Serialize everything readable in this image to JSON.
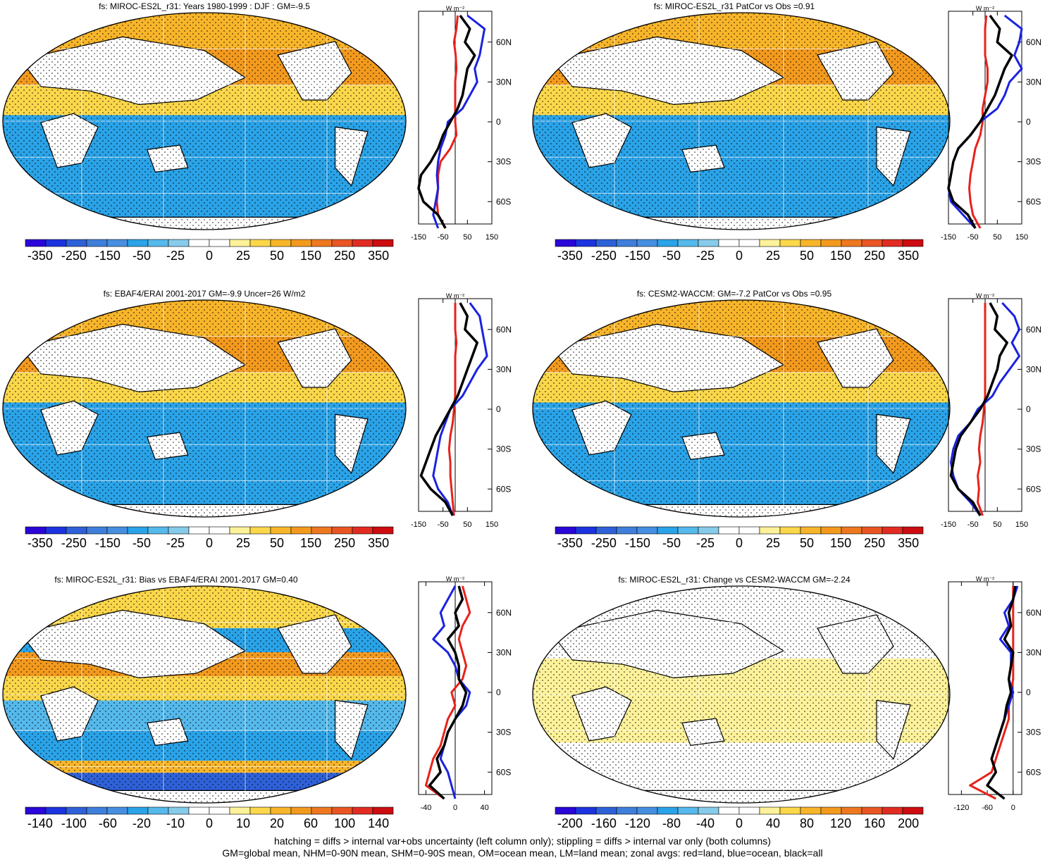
{
  "colors": {
    "scale": [
      "#2a06d8",
      "#1c33e0",
      "#2e61d8",
      "#3f7fdb",
      "#468fe0",
      "#2aa3e8",
      "#55b9ec",
      "#86cbea",
      "#ffffff",
      "#ffffff",
      "#fdf29a",
      "#fbd74a",
      "#f8b52a",
      "#f39a1e",
      "#ee7820",
      "#ea5524",
      "#e22c22",
      "#cc0c10"
    ],
    "land_line": "#e8221a",
    "ocean_line": "#1a22e0",
    "all_line": "#000000"
  },
  "panels": [
    {
      "title": "fs: MIROC-ES2L_r31: Years 1980-1999 : DJF : GM=-9.5",
      "colorbar_labels": [
        "-350",
        "-250",
        "-150",
        "-50",
        "-25",
        "0",
        "25",
        "50",
        "150",
        "250",
        "350"
      ],
      "zonal": {
        "lat_labels": [
          "60N",
          "30N",
          "0",
          "30S",
          "60S"
        ],
        "x_labels": [
          "-150",
          "-50",
          "50",
          "150"
        ],
        "unit": "W m⁻²",
        "xlim": [
          -150,
          150
        ]
      }
    },
    {
      "title": "fs: MIROC-ES2L_r31 PatCor vs Obs =0.91",
      "colorbar_labels": [
        "-350",
        "-250",
        "-150",
        "-50",
        "-25",
        "0",
        "25",
        "50",
        "150",
        "250",
        "350"
      ],
      "zonal": {
        "lat_labels": [
          "60N",
          "30N",
          "0",
          "30S",
          "60S"
        ],
        "x_labels": [
          "-150",
          "-50",
          "50",
          "150"
        ],
        "unit": "W m⁻²",
        "xlim": [
          -150,
          150
        ]
      }
    },
    {
      "title": "fs: EBAF4/ERAI 2001-2017 GM=-9.9 Uncer=26 W/m2",
      "colorbar_labels": [
        "-350",
        "-250",
        "-150",
        "-50",
        "-25",
        "0",
        "25",
        "50",
        "150",
        "250",
        "350"
      ],
      "zonal": {
        "lat_labels": [
          "60N",
          "30N",
          "0",
          "30S",
          "60S"
        ],
        "x_labels": [
          "-150",
          "-50",
          "50",
          "150"
        ],
        "unit": "W m⁻²",
        "xlim": [
          -150,
          150
        ]
      }
    },
    {
      "title": "fs: CESM2-WACCM: GM=-7.2 PatCor vs Obs =0.95",
      "colorbar_labels": [
        "-350",
        "-250",
        "-150",
        "-50",
        "-25",
        "0",
        "25",
        "50",
        "150",
        "250",
        "350"
      ],
      "zonal": {
        "lat_labels": [
          "60N",
          "30N",
          "0",
          "30S",
          "60S"
        ],
        "x_labels": [
          "-150",
          "-50",
          "50",
          "150"
        ],
        "unit": "W m⁻²",
        "xlim": [
          -150,
          150
        ]
      }
    },
    {
      "title": "fs: MIROC-ES2L_r31: Bias vs EBAF4/ERAI 2001-2017 GM=0.40",
      "colorbar_labels": [
        "-140",
        "-100",
        "-60",
        "-20",
        "-10",
        "0",
        "10",
        "20",
        "60",
        "100",
        "140"
      ],
      "zonal": {
        "lat_labels": [
          "60N",
          "30N",
          "0",
          "30S",
          "60S"
        ],
        "x_labels": [
          "-40",
          "0",
          "40"
        ],
        "unit": "W m⁻²",
        "xlim": [
          -50,
          50
        ]
      }
    },
    {
      "title": "fs: MIROC-ES2L_r31: Change vs CESM2-WACCM GM=-2.24",
      "colorbar_labels": [
        "-200",
        "-160",
        "-120",
        "-80",
        "-40",
        "0",
        "40",
        "80",
        "120",
        "160",
        "200"
      ],
      "zonal": {
        "lat_labels": [
          "60N",
          "30N",
          "0",
          "30S",
          "60S"
        ],
        "x_labels": [
          "-120",
          "-60",
          "0"
        ],
        "unit": "W m⁻²",
        "xlim": [
          -150,
          20
        ]
      }
    }
  ],
  "chart_data": [
    {
      "type": "line",
      "panel": 1,
      "x_label": "W m-2",
      "lat": [
        80,
        70,
        60,
        50,
        40,
        30,
        20,
        10,
        0,
        -10,
        -20,
        -30,
        -40,
        -50,
        -60,
        -70,
        -80
      ],
      "series": [
        {
          "name": "red=land",
          "values": [
            10,
            5,
            -5,
            2,
            5,
            0,
            0,
            0,
            0,
            5,
            -20,
            -60,
            -70,
            -70,
            -75,
            -70,
            -40
          ]
        },
        {
          "name": "blue=ocean",
          "values": [
            50,
            120,
            110,
            100,
            80,
            90,
            60,
            30,
            -30,
            -40,
            -60,
            -70,
            -75,
            -70,
            -80,
            -90,
            -70
          ]
        },
        {
          "name": "black=all",
          "values": [
            20,
            60,
            40,
            80,
            50,
            40,
            30,
            10,
            -20,
            -50,
            -70,
            -100,
            -140,
            -150,
            -130,
            -70,
            -40
          ]
        }
      ]
    },
    {
      "type": "line",
      "panel": 2,
      "x_label": "W m-2",
      "lat": [
        80,
        70,
        60,
        50,
        40,
        30,
        20,
        10,
        0,
        -10,
        -20,
        -30,
        -40,
        -50,
        -60,
        -70,
        -80
      ],
      "series": [
        {
          "name": "red=land",
          "values": [
            5,
            0,
            0,
            0,
            10,
            10,
            0,
            -10,
            -10,
            -20,
            -40,
            -50,
            -60,
            -65,
            -60,
            -50,
            -20
          ]
        },
        {
          "name": "blue=ocean",
          "values": [
            80,
            150,
            140,
            120,
            150,
            100,
            80,
            50,
            -20,
            -60,
            -110,
            -130,
            -140,
            -150,
            -140,
            -90,
            -40
          ]
        },
        {
          "name": "black=all",
          "values": [
            20,
            60,
            50,
            110,
            80,
            60,
            40,
            10,
            -20,
            -60,
            -110,
            -130,
            -140,
            -150,
            -130,
            -70,
            -40
          ]
        }
      ]
    },
    {
      "type": "line",
      "panel": 3,
      "x_label": "W m-2",
      "lat": [
        80,
        70,
        60,
        50,
        40,
        30,
        20,
        10,
        0,
        -10,
        -20,
        -30,
        -40,
        -50,
        -60,
        -70,
        -80
      ],
      "series": [
        {
          "name": "red=land",
          "values": [
            0,
            0,
            0,
            5,
            0,
            0,
            0,
            0,
            -5,
            -10,
            -20,
            -25,
            -20,
            -20,
            -15,
            -10,
            -5
          ]
        },
        {
          "name": "blue=ocean",
          "values": [
            60,
            100,
            110,
            120,
            130,
            90,
            60,
            30,
            -20,
            -40,
            -60,
            -70,
            -80,
            -90,
            -70,
            -30,
            -10
          ]
        },
        {
          "name": "black=all",
          "values": [
            20,
            50,
            40,
            90,
            70,
            50,
            30,
            10,
            -20,
            -50,
            -80,
            -100,
            -120,
            -140,
            -100,
            -40,
            -10
          ]
        }
      ]
    },
    {
      "type": "line",
      "panel": 4,
      "x_label": "W m-2",
      "lat": [
        80,
        70,
        60,
        50,
        40,
        30,
        20,
        10,
        0,
        -10,
        -20,
        -30,
        -40,
        -50,
        -60,
        -70,
        -80
      ],
      "series": [
        {
          "name": "red=land",
          "values": [
            0,
            0,
            0,
            0,
            0,
            0,
            0,
            0,
            -5,
            -10,
            -20,
            -25,
            -20,
            -30,
            -25,
            -30,
            -10
          ]
        },
        {
          "name": "blue=ocean",
          "values": [
            70,
            120,
            140,
            110,
            140,
            100,
            60,
            30,
            -30,
            -60,
            -110,
            -130,
            -140,
            -130,
            -110,
            -60,
            -20
          ]
        },
        {
          "name": "black=all",
          "values": [
            20,
            50,
            40,
            90,
            60,
            50,
            30,
            10,
            -20,
            -60,
            -100,
            -120,
            -130,
            -140,
            -110,
            -50,
            -20
          ]
        }
      ]
    },
    {
      "type": "line",
      "panel": 5,
      "x_label": "W m-2",
      "lat": [
        80,
        70,
        60,
        50,
        40,
        30,
        20,
        10,
        0,
        -10,
        -20,
        -30,
        -40,
        -50,
        -60,
        -70,
        -80
      ],
      "series": [
        {
          "name": "red=land",
          "values": [
            10,
            15,
            20,
            10,
            5,
            10,
            15,
            10,
            -5,
            0,
            -10,
            -15,
            -20,
            -30,
            -35,
            -40,
            -15
          ]
        },
        {
          "name": "blue=ocean",
          "values": [
            0,
            -10,
            -20,
            -15,
            -30,
            -10,
            0,
            5,
            20,
            15,
            0,
            -10,
            -15,
            -20,
            -10,
            -5,
            0
          ]
        },
        {
          "name": "black=all",
          "values": [
            5,
            10,
            0,
            5,
            -10,
            0,
            5,
            5,
            15,
            10,
            0,
            -10,
            -15,
            -25,
            -20,
            -35,
            -15
          ]
        }
      ]
    },
    {
      "type": "line",
      "panel": 6,
      "x_label": "W m-2",
      "lat": [
        80,
        70,
        60,
        50,
        40,
        30,
        20,
        10,
        0,
        -10,
        -20,
        -30,
        -40,
        -50,
        -60,
        -70,
        -80
      ],
      "series": [
        {
          "name": "red=land",
          "values": [
            0,
            0,
            0,
            0,
            0,
            0,
            0,
            0,
            -5,
            -10,
            -10,
            -20,
            -30,
            -40,
            -50,
            -100,
            -40
          ]
        },
        {
          "name": "blue=ocean",
          "values": [
            10,
            0,
            -20,
            -10,
            -30,
            -5,
            -5,
            -10,
            0,
            -10,
            -20,
            -30,
            -40,
            -50,
            -40,
            -60,
            -20
          ]
        },
        {
          "name": "black=all",
          "values": [
            5,
            0,
            -10,
            -5,
            -20,
            0,
            -5,
            -10,
            -5,
            -15,
            -20,
            -30,
            -40,
            -50,
            -40,
            -60,
            -20
          ]
        }
      ]
    }
  ],
  "footer": {
    "line1": "hatching = diffs > internal var+obs uncertainty (left column only); stippling = diffs > internal var only (both columns)",
    "line2": "GM=global mean, NHM=0-90N mean, SHM=0-90S mean, OM=ocean mean, LM=land mean; zonal avgs: red=land, blue=ocean, black=all"
  }
}
